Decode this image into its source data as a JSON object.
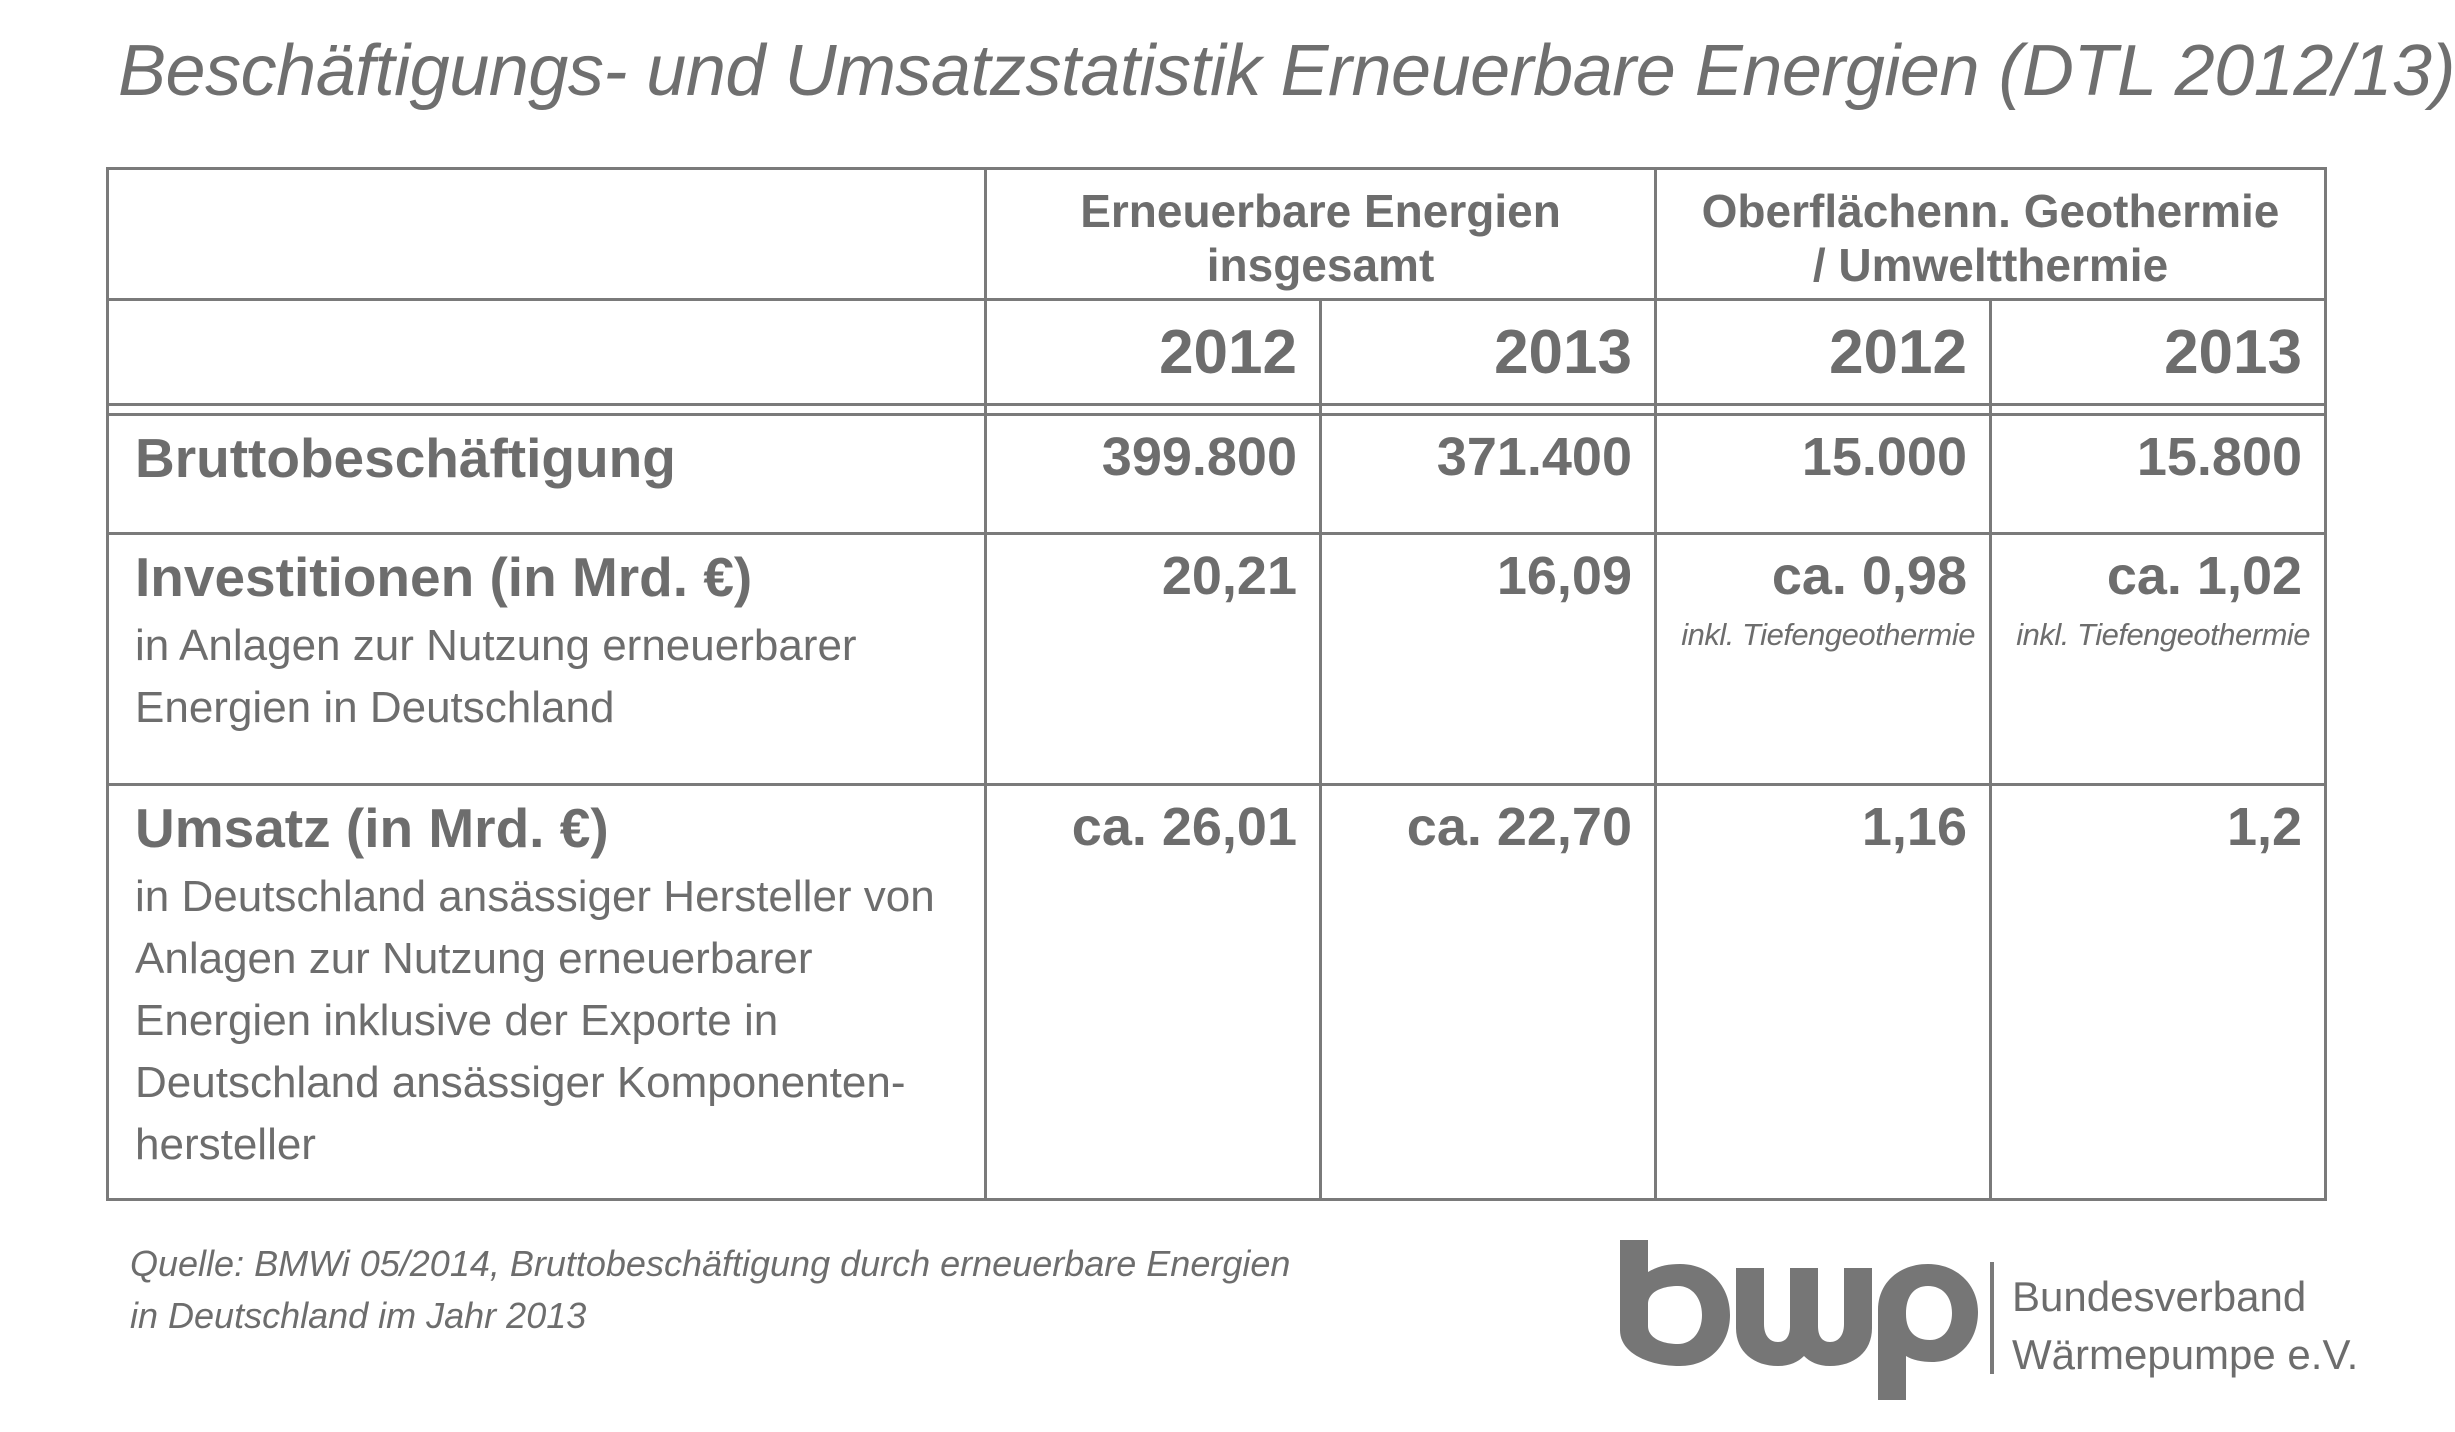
{
  "title": "Beschäftigungs- und Umsatzstatistik Erneuerbare Energien (DTL 2012/13)",
  "table": {
    "groups": [
      {
        "line1": "Erneuerbare Energien",
        "line2": "insgesamt"
      },
      {
        "line1": "Oberflächenn. Geothermie",
        "line2": "/ Umweltthermie"
      }
    ],
    "years": [
      "2012",
      "2013",
      "2012",
      "2013"
    ],
    "rows": [
      {
        "label": "Bruttobeschäftigung",
        "values": [
          "399.800",
          "371.400",
          "15.000",
          "15.800"
        ]
      },
      {
        "label": "Investitionen (in Mrd. €)",
        "desc": "in Anlagen zur Nutzung erneuerbarer Energien in Deutschland",
        "values": [
          "20,21",
          "16,09",
          "ca. 0,98",
          "ca. 1,02"
        ],
        "notes": [
          "",
          "",
          "inkl. Tiefengeothermie",
          "inkl. Tiefengeothermie"
        ]
      },
      {
        "label": "Umsatz (in Mrd. €)",
        "desc": "in Deutschland ansässiger Hersteller von Anlagen zur Nutzung erneuerbarer Energien inklusive der Exporte in Deutschland ansässiger Komponenten-hersteller",
        "values": [
          "ca. 26,01",
          "ca. 22,70",
          "1,16",
          "1,2"
        ]
      }
    ]
  },
  "source": {
    "line1": "Quelle: BMWi 05/2014, Bruttobeschäftigung durch erneuerbare Energien",
    "line2": "in Deutschland im Jahr 2013"
  },
  "logo": {
    "mark": "bwp",
    "line1": "Bundesverband",
    "line2": "Wärmepumpe e.V."
  },
  "colors": {
    "text": "#6d6d6d",
    "border": "#7a7a7a",
    "logo": "#767676"
  }
}
